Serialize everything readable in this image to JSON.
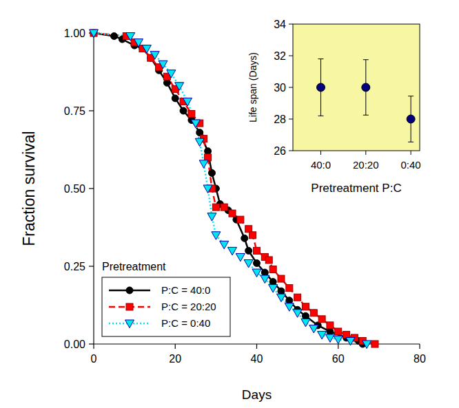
{
  "chart_data": [
    {
      "type": "line",
      "x_label": "Days",
      "y_label": "Fraction survival",
      "legend_title": "Pretreatment",
      "legend": "bottom-left",
      "xlim": [
        0,
        80
      ],
      "xticks": [
        0,
        20,
        40,
        60,
        80
      ],
      "ylim": [
        0,
        1
      ],
      "yticks": [
        {
          "value": 0,
          "label": "0.00"
        },
        {
          "value": 0.25,
          "label": "0.25"
        },
        {
          "value": 0.5,
          "label": "0.50"
        },
        {
          "value": 0.75,
          "label": "0.75"
        },
        {
          "value": 1,
          "label": "1.00"
        }
      ],
      "series": [
        {
          "name": "P:C = 40:0",
          "color": "#000000",
          "marker": "circle",
          "line_style": "solid",
          "x": [
            0,
            5,
            7,
            10,
            12,
            14,
            16,
            18,
            20,
            22,
            24,
            26,
            28,
            29,
            30,
            31,
            33,
            35,
            37,
            38,
            40,
            42,
            44,
            46,
            48,
            50,
            52,
            55,
            58,
            62,
            65,
            66
          ],
          "values": [
            1.0,
            0.99,
            0.98,
            0.96,
            0.95,
            0.92,
            0.88,
            0.84,
            0.79,
            0.75,
            0.72,
            0.68,
            0.62,
            0.55,
            0.5,
            0.45,
            0.43,
            0.4,
            0.34,
            0.3,
            0.26,
            0.23,
            0.2,
            0.17,
            0.14,
            0.11,
            0.09,
            0.06,
            0.04,
            0.02,
            0.01,
            0
          ]
        },
        {
          "name": "P:C = 20:20",
          "color": "#ff0000",
          "marker": "square",
          "line_style": "dashed",
          "x": [
            0,
            8,
            10,
            12,
            14,
            16,
            18,
            20,
            22,
            24,
            26,
            27,
            28,
            29,
            30,
            32,
            34,
            36,
            38,
            39,
            40,
            42,
            43,
            44,
            46,
            48,
            50,
            52,
            54,
            56,
            58,
            60,
            62,
            64,
            66,
            69
          ],
          "values": [
            1.0,
            0.99,
            0.97,
            0.95,
            0.92,
            0.89,
            0.86,
            0.82,
            0.78,
            0.74,
            0.71,
            0.66,
            0.6,
            0.5,
            0.44,
            0.44,
            0.42,
            0.4,
            0.37,
            0.35,
            0.3,
            0.28,
            0.27,
            0.24,
            0.21,
            0.18,
            0.15,
            0.12,
            0.1,
            0.08,
            0.06,
            0.04,
            0.03,
            0.02,
            0.01,
            0
          ]
        },
        {
          "name": "P:C = 0:40",
          "color": "#00e5ee",
          "marker": "triangle-down",
          "line_style": "dotted",
          "x": [
            0,
            9,
            11,
            13,
            15,
            17,
            19,
            21,
            23,
            25,
            26,
            27,
            28,
            29,
            30,
            32,
            34,
            36,
            38,
            40,
            42,
            44,
            46,
            48,
            50,
            52,
            54,
            56,
            58,
            60,
            63,
            67
          ],
          "values": [
            1.0,
            0.99,
            0.97,
            0.95,
            0.93,
            0.9,
            0.87,
            0.83,
            0.78,
            0.71,
            0.65,
            0.58,
            0.5,
            0.41,
            0.35,
            0.32,
            0.3,
            0.28,
            0.26,
            0.23,
            0.21,
            0.18,
            0.15,
            0.12,
            0.1,
            0.07,
            0.05,
            0.03,
            0.02,
            0.015,
            0.01,
            0
          ]
        }
      ]
    },
    {
      "type": "scatter",
      "x_label": "Pretreatment P:C",
      "y_label": "Life span (Days)",
      "categories": [
        "40:0",
        "20:20",
        "0:40"
      ],
      "values": [
        30,
        30,
        28
      ],
      "errors": [
        1.8,
        1.75,
        1.45
      ],
      "color": "#000080",
      "marker": "circle",
      "ylim": [
        26,
        34
      ],
      "yticks": [
        26,
        28,
        30,
        32,
        34
      ]
    }
  ]
}
